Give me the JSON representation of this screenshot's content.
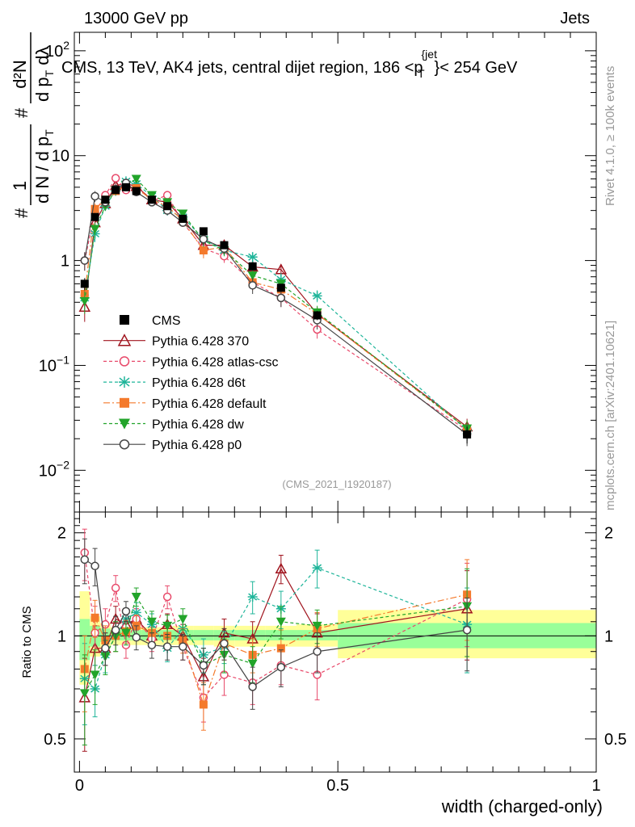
{
  "header": {
    "left": "13000 GeV pp",
    "right": "Jets"
  },
  "ylabel_main": {
    "prefix": "#",
    "frac1_num": "1",
    "frac1_den": "d N / d p",
    "frac1_den_sub": "T",
    "frac2_hash": "#",
    "frac2_num": "d²N",
    "frac2_den": "d p",
    "frac2_den_sub": "T",
    "frac2_den_tail": " dλ"
  },
  "side_texts": {
    "rivet": "Rivet 4.1.0, ≥ 100k events",
    "mcplots": "mcplots.cern.ch [arXiv:2401.10621]"
  },
  "analysis_tag": "(CMS_2021_I1920187)",
  "ratio_ylabel": "Ratio to CMS",
  "xaxis_label": "width (charged-only)",
  "chart_data": {
    "type": "line",
    "title": "CMS, 13 TeV, AK4 jets, central dijet region, 186 <p_T^{jet}< 254 GeV",
    "title_parts": {
      "main": "CMS, 13 TeV, AK4 jets, central dijet region, 186 <p",
      "sup": "{jet",
      "sub": "T",
      "tail": "}< 254 GeV"
    },
    "xlabel": "width (charged-only)",
    "xlim": [
      -0.01,
      1.0
    ],
    "ylim": [
      0.004,
      150
    ],
    "yscale": "log",
    "x_ticks": [
      0,
      0.5,
      1
    ],
    "x_tick_labels": [
      "0",
      "0.5",
      "1"
    ],
    "y_ticks": [
      0.01,
      0.1,
      1,
      10,
      100
    ],
    "y_tick_labels": [
      {
        "base": "10",
        "exp": "−2"
      },
      {
        "base": "10",
        "exp": "−1"
      },
      {
        "base": "1",
        "exp": ""
      },
      {
        "base": "10",
        "exp": ""
      },
      {
        "base": "10",
        "exp": "2"
      }
    ],
    "ratio": {
      "ylabel": "Ratio to CMS",
      "ylim": [
        0.4,
        2.3
      ],
      "yscale": "log",
      "ticks": [
        0.5,
        1,
        2
      ],
      "tick_labels": [
        "0.5",
        "1",
        "2"
      ]
    },
    "x": [
      0.01,
      0.03,
      0.05,
      0.07,
      0.09,
      0.11,
      0.14,
      0.17,
      0.2,
      0.24,
      0.28,
      0.335,
      0.39,
      0.46,
      0.75
    ],
    "data_uncertainty_bands": [
      {
        "x0": 0.0,
        "x1": 0.02,
        "inner": [
          0.85,
          1.12
        ],
        "outer": [
          0.72,
          1.35
        ]
      },
      {
        "x0": 0.02,
        "x1": 0.04,
        "inner": [
          0.93,
          1.07
        ],
        "outer": [
          0.87,
          1.14
        ]
      },
      {
        "x0": 0.04,
        "x1": 0.06,
        "inner": [
          0.96,
          1.05
        ],
        "outer": [
          0.92,
          1.09
        ]
      },
      {
        "x0": 0.06,
        "x1": 0.08,
        "inner": [
          0.97,
          1.04
        ],
        "outer": [
          0.94,
          1.06
        ]
      },
      {
        "x0": 0.08,
        "x1": 0.1,
        "inner": [
          0.97,
          1.04
        ],
        "outer": [
          0.94,
          1.06
        ]
      },
      {
        "x0": 0.1,
        "x1": 0.12,
        "inner": [
          0.97,
          1.04
        ],
        "outer": [
          0.94,
          1.06
        ]
      },
      {
        "x0": 0.12,
        "x1": 0.15,
        "inner": [
          0.97,
          1.04
        ],
        "outer": [
          0.94,
          1.06
        ]
      },
      {
        "x0": 0.15,
        "x1": 0.18,
        "inner": [
          0.97,
          1.04
        ],
        "outer": [
          0.94,
          1.06
        ]
      },
      {
        "x0": 0.18,
        "x1": 0.22,
        "inner": [
          0.97,
          1.04
        ],
        "outer": [
          0.94,
          1.07
        ]
      },
      {
        "x0": 0.22,
        "x1": 0.26,
        "inner": [
          0.97,
          1.04
        ],
        "outer": [
          0.94,
          1.07
        ]
      },
      {
        "x0": 0.26,
        "x1": 0.3,
        "inner": [
          0.97,
          1.04
        ],
        "outer": [
          0.93,
          1.07
        ]
      },
      {
        "x0": 0.3,
        "x1": 0.36,
        "inner": [
          0.97,
          1.04
        ],
        "outer": [
          0.93,
          1.07
        ]
      },
      {
        "x0": 0.36,
        "x1": 0.42,
        "inner": [
          0.97,
          1.04
        ],
        "outer": [
          0.93,
          1.07
        ]
      },
      {
        "x0": 0.42,
        "x1": 0.5,
        "inner": [
          0.97,
          1.04
        ],
        "outer": [
          0.93,
          1.08
        ]
      },
      {
        "x0": 0.5,
        "x1": 1.0,
        "inner": [
          0.92,
          1.09
        ],
        "outer": [
          0.86,
          1.19
        ]
      }
    ],
    "series": [
      {
        "name": "CMS",
        "color": "#000000",
        "marker": "square-filled",
        "dash": "none",
        "ref": true,
        "values": [
          0.6,
          2.6,
          3.8,
          4.7,
          5.0,
          4.6,
          3.8,
          3.3,
          2.5,
          1.9,
          1.4,
          0.88,
          0.55,
          0.3,
          0.022
        ],
        "err": [
          0.08,
          0.2,
          0.2,
          0.2,
          0.2,
          0.2,
          0.15,
          0.12,
          0.1,
          0.1,
          0.08,
          0.06,
          0.04,
          0.03,
          0.004
        ],
        "ratio": null
      },
      {
        "name": "Pythia 6.428 370",
        "color": "#a0141e",
        "marker": "triangle-open",
        "dash": "none",
        "values": [
          0.36,
          2.3,
          3.5,
          5.2,
          5.4,
          5.1,
          3.8,
          3.6,
          2.5,
          1.4,
          1.4,
          0.87,
          0.82,
          0.31,
          0.026
        ],
        "err": [
          0.1,
          0.4,
          0.4,
          0.4,
          0.4,
          0.4,
          0.3,
          0.3,
          0.2,
          0.2,
          0.15,
          0.12,
          0.1,
          0.05,
          0.005
        ],
        "ratio": [
          0.66,
          0.92,
          0.92,
          1.12,
          1.08,
          1.12,
          1.0,
          1.08,
          1.0,
          0.76,
          1.02,
          0.98,
          1.57,
          1.02,
          1.2
        ],
        "ratio_err": [
          0.2,
          0.15,
          0.1,
          0.1,
          0.08,
          0.08,
          0.08,
          0.08,
          0.08,
          0.1,
          0.1,
          0.12,
          0.15,
          0.14,
          0.35
        ]
      },
      {
        "name": "Pythia 6.428 atlas-csc",
        "color": "#e8496a",
        "marker": "circle-open",
        "dash": "4,3",
        "values": [
          1.0,
          2.9,
          4.2,
          6.1,
          4.7,
          5.1,
          3.7,
          4.2,
          2.3,
          1.3,
          1.1,
          0.62,
          0.44,
          0.22,
          0.024
        ],
        "err": [
          0.2,
          0.4,
          0.4,
          0.5,
          0.4,
          0.4,
          0.3,
          0.3,
          0.2,
          0.2,
          0.15,
          0.1,
          0.08,
          0.04,
          0.005
        ],
        "ratio": [
          1.75,
          1.02,
          1.08,
          1.38,
          0.94,
          1.12,
          0.98,
          1.3,
          0.93,
          0.66,
          0.77,
          0.73,
          0.82,
          0.77,
          1.28
        ],
        "ratio_err": [
          0.3,
          0.2,
          0.12,
          0.12,
          0.08,
          0.08,
          0.08,
          0.1,
          0.08,
          0.1,
          0.1,
          0.1,
          0.1,
          0.12,
          0.35
        ]
      },
      {
        "name": "Pythia 6.428 d6t",
        "color": "#1fb59a",
        "marker": "star",
        "dash": "4,3",
        "values": [
          0.44,
          1.8,
          3.3,
          4.6,
          5.7,
          5.4,
          4.1,
          3.0,
          2.6,
          1.6,
          1.25,
          1.08,
          0.66,
          0.46,
          0.024
        ],
        "err": [
          0.1,
          0.3,
          0.3,
          0.4,
          0.4,
          0.4,
          0.3,
          0.3,
          0.2,
          0.2,
          0.15,
          0.12,
          0.1,
          0.06,
          0.005
        ],
        "ratio": [
          0.75,
          0.7,
          0.88,
          1.0,
          1.12,
          1.17,
          1.08,
          0.92,
          1.05,
          0.88,
          0.93,
          1.3,
          1.2,
          1.58,
          1.08
        ],
        "ratio_err": [
          0.2,
          0.12,
          0.1,
          0.1,
          0.08,
          0.08,
          0.08,
          0.08,
          0.08,
          0.1,
          0.1,
          0.14,
          0.15,
          0.2,
          0.3
        ]
      },
      {
        "name": "Pythia 6.428 default",
        "color": "#f47a2c",
        "marker": "square-filled",
        "dash": "8,3,2,3",
        "values": [
          0.48,
          3.1,
          3.8,
          4.6,
          5.1,
          4.9,
          3.8,
          3.3,
          2.4,
          1.25,
          1.35,
          0.62,
          0.53,
          0.31,
          0.025
        ],
        "err": [
          0.1,
          0.4,
          0.3,
          0.4,
          0.4,
          0.4,
          0.3,
          0.3,
          0.2,
          0.2,
          0.15,
          0.1,
          0.08,
          0.05,
          0.005
        ],
        "ratio": [
          0.8,
          1.13,
          0.97,
          1.0,
          1.03,
          1.07,
          1.02,
          1.0,
          0.97,
          0.63,
          0.95,
          0.88,
          0.92,
          1.05,
          1.32
        ],
        "ratio_err": [
          0.2,
          0.14,
          0.1,
          0.1,
          0.08,
          0.08,
          0.08,
          0.08,
          0.08,
          0.1,
          0.1,
          0.1,
          0.12,
          0.12,
          0.35
        ]
      },
      {
        "name": "Pythia 6.428 dw",
        "color": "#22a42a",
        "marker": "triangle-down-filled",
        "dash": "4,3",
        "values": [
          0.41,
          2.0,
          3.3,
          4.7,
          5.2,
          6.0,
          4.2,
          3.6,
          2.8,
          1.55,
          1.25,
          0.72,
          0.6,
          0.32,
          0.025
        ],
        "err": [
          0.1,
          0.3,
          0.3,
          0.4,
          0.4,
          0.4,
          0.3,
          0.3,
          0.2,
          0.2,
          0.15,
          0.1,
          0.08,
          0.05,
          0.005
        ],
        "ratio": [
          0.68,
          0.77,
          0.87,
          1.0,
          1.02,
          1.3,
          1.1,
          1.07,
          1.12,
          0.82,
          0.88,
          0.83,
          1.1,
          1.07,
          1.22
        ],
        "ratio_err": [
          0.2,
          0.14,
          0.1,
          0.1,
          0.08,
          0.08,
          0.08,
          0.08,
          0.08,
          0.1,
          0.1,
          0.1,
          0.12,
          0.12,
          0.35
        ]
      },
      {
        "name": "Pythia 6.428 p0",
        "color": "#444444",
        "marker": "circle-open",
        "dash": "none",
        "values": [
          1.0,
          4.1,
          3.6,
          4.8,
          5.5,
          4.5,
          3.6,
          3.0,
          2.3,
          1.6,
          1.3,
          0.58,
          0.44,
          0.27,
          0.022
        ],
        "err": [
          0.2,
          0.5,
          0.4,
          0.4,
          0.4,
          0.4,
          0.3,
          0.3,
          0.2,
          0.2,
          0.15,
          0.1,
          0.08,
          0.05,
          0.005
        ],
        "ratio": [
          1.67,
          1.6,
          0.92,
          1.04,
          1.18,
          0.99,
          0.94,
          0.93,
          0.93,
          0.82,
          0.95,
          0.71,
          0.81,
          0.9,
          1.04
        ],
        "ratio_err": [
          0.25,
          0.2,
          0.1,
          0.1,
          0.08,
          0.08,
          0.08,
          0.08,
          0.08,
          0.1,
          0.1,
          0.1,
          0.1,
          0.12,
          0.25
        ]
      }
    ]
  }
}
